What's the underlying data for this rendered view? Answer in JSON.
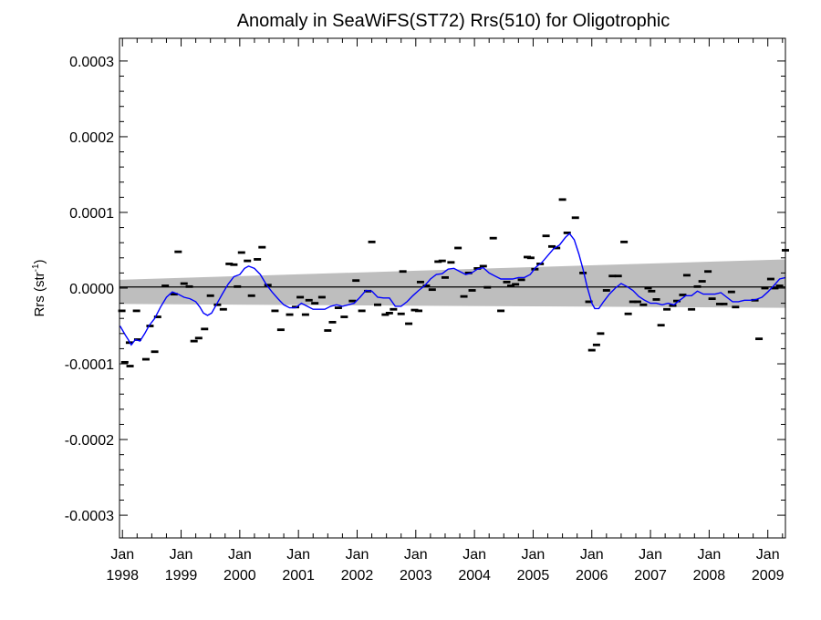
{
  "chart_data": {
    "type": "scatter",
    "title": "Anomaly in SeaWiFS(ST72) Rrs(510) for Oligotrophic",
    "ylabel": "Rrs (str",
    "ylabel_sup": "-1",
    "ylabel_close": ")",
    "xlim": [
      1997.95,
      2009.3
    ],
    "ylim": [
      -0.00033,
      0.00033
    ],
    "yticks": [
      {
        "value": 0.0003,
        "label": "0.0003"
      },
      {
        "value": 0.0002,
        "label": "0.0002"
      },
      {
        "value": 0.0001,
        "label": "0.0001"
      },
      {
        "value": 0.0,
        "label": "0.0000"
      },
      {
        "value": -0.0001,
        "label": "-0.0001"
      },
      {
        "value": -0.0002,
        "label": "-0.0002"
      },
      {
        "value": -0.0003,
        "label": "-0.0003"
      }
    ],
    "xticks": [
      {
        "value": 1998,
        "month": "Jan",
        "year": "1998"
      },
      {
        "value": 1999,
        "month": "Jan",
        "year": "1999"
      },
      {
        "value": 2000,
        "month": "Jan",
        "year": "2000"
      },
      {
        "value": 2001,
        "month": "Jan",
        "year": "2001"
      },
      {
        "value": 2002,
        "month": "Jan",
        "year": "2002"
      },
      {
        "value": 2003,
        "month": "Jan",
        "year": "2003"
      },
      {
        "value": 2004,
        "month": "Jan",
        "year": "2004"
      },
      {
        "value": 2005,
        "month": "Jan",
        "year": "2005"
      },
      {
        "value": 2006,
        "month": "Jan",
        "year": "2006"
      },
      {
        "value": 2007,
        "month": "Jan",
        "year": "2007"
      },
      {
        "value": 2008,
        "month": "Jan",
        "year": "2008"
      },
      {
        "value": 2009,
        "month": "Jan",
        "year": "2009"
      }
    ],
    "colors": {
      "points": "#000000",
      "smooth_line": "#0000ff",
      "confidence_band": "#bebebe",
      "zero_line": "#000000"
    },
    "confidence_band": {
      "x": [
        1997.95,
        2009.3
      ],
      "upper": [
        1.1e-05,
        3.8e-05
      ],
      "lower": [
        -2.1e-05,
        -2.6e-05
      ]
    },
    "trend_line": {
      "x": [
        1997.95,
        2009.3
      ],
      "y": [
        1.5e-06,
        1.5e-06
      ]
    },
    "points": [
      {
        "x": 1997.99,
        "y": -3e-05
      },
      {
        "x": 1998.04,
        "y": -9.8e-05
      },
      {
        "x": 1998.12,
        "y": -7.2e-05
      },
      {
        "x": 1998.13,
        "y": -0.000103
      },
      {
        "x": 1998.24,
        "y": -3e-05
      },
      {
        "x": 1998.26,
        "y": -6.8e-05
      },
      {
        "x": 1998.4,
        "y": -9.4e-05
      },
      {
        "x": 1998.47,
        "y": -5e-05
      },
      {
        "x": 1998.55,
        "y": -8.4e-05
      },
      {
        "x": 1998.6,
        "y": -3.8e-05
      },
      {
        "x": 1998.73,
        "y": 3e-06
      },
      {
        "x": 1998.88,
        "y": -8e-06
      },
      {
        "x": 1998.95,
        "y": 4.8e-05
      },
      {
        "x": 1999.05,
        "y": 6e-06
      },
      {
        "x": 1999.14,
        "y": 2e-06
      },
      {
        "x": 1999.22,
        "y": -7e-05
      },
      {
        "x": 1999.3,
        "y": -6.6e-05
      },
      {
        "x": 1999.4,
        "y": -5.4e-05
      },
      {
        "x": 1999.5,
        "y": -1e-05
      },
      {
        "x": 1999.62,
        "y": -2.2e-05
      },
      {
        "x": 1999.72,
        "y": -2.8e-05
      },
      {
        "x": 1999.82,
        "y": 3.2e-05
      },
      {
        "x": 1999.9,
        "y": 3.1e-05
      },
      {
        "x": 1999.96,
        "y": 2e-06
      },
      {
        "x": 2000.03,
        "y": 4.7e-05
      },
      {
        "x": 2000.13,
        "y": 3.6e-05
      },
      {
        "x": 2000.2,
        "y": -1e-05
      },
      {
        "x": 2000.3,
        "y": 3.8e-05
      },
      {
        "x": 2000.38,
        "y": 5.4e-05
      },
      {
        "x": 2000.48,
        "y": 4e-06
      },
      {
        "x": 2000.6,
        "y": -3e-05
      },
      {
        "x": 2000.7,
        "y": -5.5e-05
      },
      {
        "x": 2000.85,
        "y": -3.5e-05
      },
      {
        "x": 2000.95,
        "y": -2.5e-05
      },
      {
        "x": 2001.03,
        "y": -1.2e-05
      },
      {
        "x": 2001.12,
        "y": -3.5e-05
      },
      {
        "x": 2001.18,
        "y": -1.6e-05
      },
      {
        "x": 2001.28,
        "y": -2e-05
      },
      {
        "x": 2001.4,
        "y": -1.2e-05
      },
      {
        "x": 2001.5,
        "y": -5.6e-05
      },
      {
        "x": 2001.58,
        "y": -4.5e-05
      },
      {
        "x": 2001.68,
        "y": -2.6e-05
      },
      {
        "x": 2001.78,
        "y": -3.8e-05
      },
      {
        "x": 2001.92,
        "y": -1.7e-05
      },
      {
        "x": 2001.98,
        "y": 1e-05
      },
      {
        "x": 2002.08,
        "y": -3e-05
      },
      {
        "x": 2002.18,
        "y": -4e-06
      },
      {
        "x": 2002.25,
        "y": 6.1e-05
      },
      {
        "x": 2002.35,
        "y": -2.2e-05
      },
      {
        "x": 2002.48,
        "y": -3.5e-05
      },
      {
        "x": 2002.55,
        "y": -3.3e-05
      },
      {
        "x": 2002.62,
        "y": -2.8e-05
      },
      {
        "x": 2002.75,
        "y": -3.4e-05
      },
      {
        "x": 2002.78,
        "y": 2.2e-05
      },
      {
        "x": 2002.88,
        "y": -4.7e-05
      },
      {
        "x": 2002.98,
        "y": -2.9e-05
      },
      {
        "x": 2003.05,
        "y": -3e-05
      },
      {
        "x": 2003.08,
        "y": 8e-06
      },
      {
        "x": 2003.18,
        "y": 3e-06
      },
      {
        "x": 2003.28,
        "y": -2e-06
      },
      {
        "x": 2003.38,
        "y": 3.5e-05
      },
      {
        "x": 2003.45,
        "y": 3.6e-05
      },
      {
        "x": 2003.5,
        "y": 1.4e-05
      },
      {
        "x": 2003.6,
        "y": 3.4e-05
      },
      {
        "x": 2003.72,
        "y": 5.3e-05
      },
      {
        "x": 2003.82,
        "y": -1.1e-05
      },
      {
        "x": 2003.9,
        "y": 2e-05
      },
      {
        "x": 2003.96,
        "y": -3e-06
      },
      {
        "x": 2004.05,
        "y": 2.6e-05
      },
      {
        "x": 2004.15,
        "y": 2.9e-05
      },
      {
        "x": 2004.22,
        "y": 1e-06
      },
      {
        "x": 2004.32,
        "y": 6.6e-05
      },
      {
        "x": 2004.45,
        "y": -3e-05
      },
      {
        "x": 2004.55,
        "y": 8e-06
      },
      {
        "x": 2004.62,
        "y": 3e-06
      },
      {
        "x": 2004.7,
        "y": 5e-06
      },
      {
        "x": 2004.8,
        "y": 1.1e-05
      },
      {
        "x": 2004.9,
        "y": 4.1e-05
      },
      {
        "x": 2004.96,
        "y": 4e-05
      },
      {
        "x": 2005.03,
        "y": 2.5e-05
      },
      {
        "x": 2005.12,
        "y": 3.2e-05
      },
      {
        "x": 2005.22,
        "y": 6.9e-05
      },
      {
        "x": 2005.32,
        "y": 5.5e-05
      },
      {
        "x": 2005.4,
        "y": 5.3e-05
      },
      {
        "x": 2005.5,
        "y": 0.000117
      },
      {
        "x": 2005.58,
        "y": 7.3e-05
      },
      {
        "x": 2005.72,
        "y": 9.3e-05
      },
      {
        "x": 2005.85,
        "y": 2e-05
      },
      {
        "x": 2005.95,
        "y": -1.8e-05
      },
      {
        "x": 2006.0,
        "y": -8.2e-05
      },
      {
        "x": 2006.08,
        "y": -7.5e-05
      },
      {
        "x": 2006.15,
        "y": -6e-05
      },
      {
        "x": 2006.25,
        "y": -3e-06
      },
      {
        "x": 2006.35,
        "y": 1.6e-05
      },
      {
        "x": 2006.45,
        "y": 1.6e-05
      },
      {
        "x": 2006.55,
        "y": 6.1e-05
      },
      {
        "x": 2006.62,
        "y": -3.4e-05
      },
      {
        "x": 2006.7,
        "y": -1.8e-05
      },
      {
        "x": 2006.78,
        "y": -1.8e-05
      },
      {
        "x": 2006.88,
        "y": -2.2e-05
      },
      {
        "x": 2006.96,
        "y": 0.0
      },
      {
        "x": 2007.02,
        "y": -4e-06
      },
      {
        "x": 2007.1,
        "y": -1.5e-05
      },
      {
        "x": 2007.18,
        "y": -4.9e-05
      },
      {
        "x": 2007.28,
        "y": -2.8e-05
      },
      {
        "x": 2007.38,
        "y": -2.3e-05
      },
      {
        "x": 2007.45,
        "y": -1.7e-05
      },
      {
        "x": 2007.55,
        "y": -9e-06
      },
      {
        "x": 2007.62,
        "y": 1.7e-05
      },
      {
        "x": 2007.7,
        "y": -2.8e-05
      },
      {
        "x": 2007.8,
        "y": 2e-06
      },
      {
        "x": 2007.88,
        "y": 9e-06
      },
      {
        "x": 2007.98,
        "y": 2.2e-05
      },
      {
        "x": 2008.05,
        "y": -1.4e-05
      },
      {
        "x": 2008.18,
        "y": -2.1e-05
      },
      {
        "x": 2008.25,
        "y": -2.1e-05
      },
      {
        "x": 2008.38,
        "y": -5e-06
      },
      {
        "x": 2008.45,
        "y": -2.5e-05
      },
      {
        "x": 2008.78,
        "y": -1.6e-05
      },
      {
        "x": 2008.85,
        "y": -6.7e-05
      },
      {
        "x": 2008.95,
        "y": 0.0
      },
      {
        "x": 2009.05,
        "y": 1.2e-05
      },
      {
        "x": 2009.12,
        "y": 0.0
      },
      {
        "x": 2009.2,
        "y": 3e-06
      },
      {
        "x": 2009.3,
        "y": 5e-05
      }
    ],
    "smooth_line": {
      "x": [
        1997.96,
        1998.05,
        1998.1,
        1998.15,
        1998.22,
        1998.3,
        1998.38,
        1998.45,
        1998.55,
        1998.65,
        1998.75,
        1998.85,
        1998.95,
        1999.05,
        1999.15,
        1999.25,
        1999.32,
        1999.38,
        1999.45,
        1999.52,
        1999.6,
        1999.7,
        1999.8,
        1999.9,
        2000.0,
        2000.08,
        2000.15,
        2000.25,
        2000.35,
        2000.45,
        2000.55,
        2000.65,
        2000.75,
        2000.85,
        2000.95,
        2001.05,
        2001.15,
        2001.25,
        2001.35,
        2001.45,
        2001.55,
        2001.65,
        2001.75,
        2001.85,
        2001.95,
        2002.05,
        2002.15,
        2002.25,
        2002.35,
        2002.45,
        2002.55,
        2002.65,
        2002.75,
        2002.85,
        2002.95,
        2003.05,
        2003.15,
        2003.25,
        2003.35,
        2003.45,
        2003.55,
        2003.65,
        2003.75,
        2003.85,
        2003.95,
        2004.05,
        2004.15,
        2004.25,
        2004.35,
        2004.45,
        2004.55,
        2004.65,
        2004.75,
        2004.85,
        2004.95,
        2005.05,
        2005.15,
        2005.25,
        2005.35,
        2005.45,
        2005.55,
        2005.62,
        2005.7,
        2005.78,
        2005.85,
        2005.92,
        2006.0,
        2006.05,
        2006.12,
        2006.2,
        2006.3,
        2006.4,
        2006.5,
        2006.6,
        2006.7,
        2006.8,
        2006.9,
        2007.0,
        2007.1,
        2007.2,
        2007.3,
        2007.4,
        2007.5,
        2007.6,
        2007.7,
        2007.8,
        2007.9,
        2008.0,
        2008.1,
        2008.2,
        2008.3,
        2008.4,
        2008.5,
        2008.6,
        2008.7,
        2008.8,
        2008.9,
        2009.0,
        2009.1,
        2009.2,
        2009.3
      ],
      "y": [
        -5e-05,
        -6.2e-05,
        -6.8e-05,
        -7.5e-05,
        -6.8e-05,
        -7e-05,
        -6e-05,
        -5e-05,
        -4e-05,
        -2.5e-05,
        -1.2e-05,
        -5e-06,
        -8e-06,
        -1.2e-05,
        -1.4e-05,
        -1.8e-05,
        -2.5e-05,
        -3.3e-05,
        -3.6e-05,
        -3.3e-05,
        -2.2e-05,
        -8e-06,
        5e-06,
        1.5e-05,
        1.8e-05,
        2.6e-05,
        2.9e-05,
        2.6e-05,
        1.8e-05,
        5e-06,
        -5e-06,
        -1.4e-05,
        -2.2e-05,
        -2.6e-05,
        -2.6e-05,
        -2e-05,
        -2.4e-05,
        -2.8e-05,
        -2.8e-05,
        -2.8e-05,
        -2.4e-05,
        -2.2e-05,
        -2.4e-05,
        -2.2e-05,
        -2e-05,
        -1.2e-05,
        -3e-06,
        -4e-06,
        -1.2e-05,
        -1.3e-05,
        -1.3e-05,
        -2.4e-05,
        -2.4e-05,
        -1.8e-05,
        -1e-05,
        -3e-06,
        3e-06,
        1.2e-05,
        1.8e-05,
        1.9e-05,
        2.5e-05,
        2.6e-05,
        2.2e-05,
        1.8e-05,
        2e-05,
        2.5e-05,
        2.7e-05,
        2e-05,
        1.6e-05,
        1.2e-05,
        1.2e-05,
        1.2e-05,
        1.4e-05,
        1.4e-05,
        1.8e-05,
        2.8e-05,
        3.4e-05,
        4.3e-05,
        5.2e-05,
        5.7e-05,
        6.7e-05,
        7.2e-05,
        6.4e-05,
        4.5e-05,
        2.5e-05,
        2e-06,
        -2e-05,
        -2.7e-05,
        -2.7e-05,
        -1.8e-05,
        -8e-06,
        0.0,
        6e-06,
        2e-06,
        -3e-06,
        -1.1e-05,
        -1.6e-05,
        -2e-05,
        -2e-05,
        -2.2e-05,
        -2e-05,
        -2.2e-05,
        -1.6e-05,
        -1e-05,
        -1e-05,
        -4e-06,
        -8e-06,
        -8e-06,
        -8e-06,
        -6e-06,
        -1.2e-05,
        -1.8e-05,
        -1.8e-05,
        -1.6e-05,
        -1.6e-05,
        -1.5e-05,
        -1.2e-05,
        -5e-06,
        3e-06,
        1.2e-05,
        1.4e-05
      ]
    }
  }
}
